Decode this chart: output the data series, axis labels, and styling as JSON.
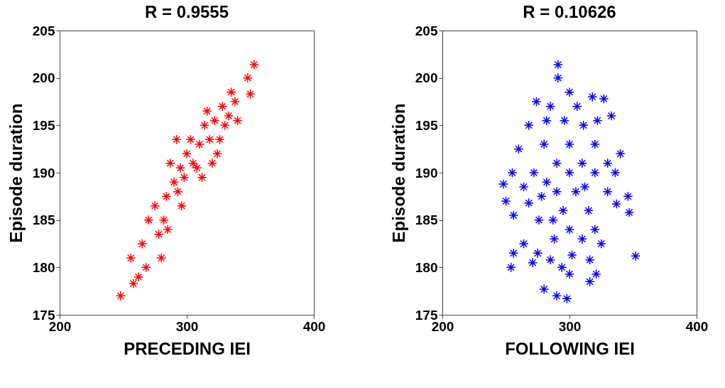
{
  "chart_data": [
    {
      "type": "scatter",
      "title": "R = 0.9555",
      "xlabel": "PRECEDING IEI",
      "ylabel": "Episode duration",
      "xlim": [
        200,
        400
      ],
      "ylim": [
        175,
        205
      ],
      "xticks": [
        200,
        300,
        400
      ],
      "yticks": [
        175,
        180,
        185,
        190,
        195,
        200,
        205
      ],
      "grid": false,
      "legend": false,
      "marker": "cross",
      "series": [
        {
          "color": "#ff0000",
          "x": [
            248,
            258,
            256,
            265,
            270,
            280,
            275,
            282,
            284,
            290,
            287,
            295,
            293,
            300,
            298,
            305,
            303,
            310,
            308,
            314,
            318,
            316,
            322,
            324,
            328,
            330,
            335,
            333,
            338,
            340,
            348,
            350,
            353,
            278,
            268,
            262,
            285,
            296,
            312,
            320,
            326,
            292
          ],
          "values": [
            177,
            178.3,
            181,
            182.5,
            185,
            181,
            186.5,
            185,
            187.5,
            189,
            191,
            190.5,
            188,
            192,
            189.5,
            191,
            193.5,
            193,
            190.5,
            195,
            193.5,
            196.5,
            195.5,
            192,
            197,
            195,
            198.5,
            196,
            197.5,
            195.5,
            200,
            198.3,
            201.4,
            183.5,
            180,
            179,
            184,
            186.5,
            189.5,
            191,
            193.5,
            193.5
          ]
        }
      ]
    },
    {
      "type": "scatter",
      "title": "R = 0.10626",
      "xlabel": "FOLLOWING IEI",
      "ylabel": "Episode duration",
      "xlim": [
        200,
        400
      ],
      "ylim": [
        175,
        205
      ],
      "xticks": [
        200,
        300,
        400
      ],
      "yticks": [
        175,
        180,
        185,
        190,
        195,
        200,
        205
      ],
      "grid": false,
      "legend": false,
      "marker": "cross",
      "series": [
        {
          "color": "#0000ff",
          "x": [
            291,
            291,
            300,
            318,
            327,
            274,
            285,
            306,
            333,
            268,
            296,
            311,
            260,
            280,
            300,
            320,
            340,
            255,
            272,
            290,
            310,
            330,
            248,
            264,
            282,
            300,
            320,
            250,
            268,
            290,
            305,
            330,
            346,
            256,
            276,
            295,
            315,
            337,
            347,
            300,
            320,
            288,
            310,
            325,
            264,
            256,
            275,
            285,
            302,
            316,
            352,
            254,
            271,
            294,
            300,
            321,
            280,
            290,
            298,
            316,
            282,
            322,
            278,
            312,
            336,
            287
          ],
          "values": [
            201.4,
            200,
            198.5,
            198,
            197.8,
            197.5,
            197,
            197,
            196,
            195,
            195.5,
            195,
            192.5,
            193,
            193,
            193,
            192,
            190,
            190,
            191,
            191,
            191,
            188.8,
            188.5,
            189,
            190,
            190,
            187,
            186.8,
            188,
            188,
            188,
            187.5,
            185.5,
            185,
            186,
            186,
            186.7,
            185.8,
            184,
            184,
            183,
            183,
            182.5,
            182.5,
            181.5,
            181.5,
            180.8,
            181.3,
            180.8,
            181.2,
            180,
            180.5,
            180,
            179.3,
            179.3,
            177.7,
            177,
            176.7,
            178.5,
            195.5,
            195.5,
            187.5,
            188.5,
            190,
            185
          ]
        }
      ]
    }
  ]
}
